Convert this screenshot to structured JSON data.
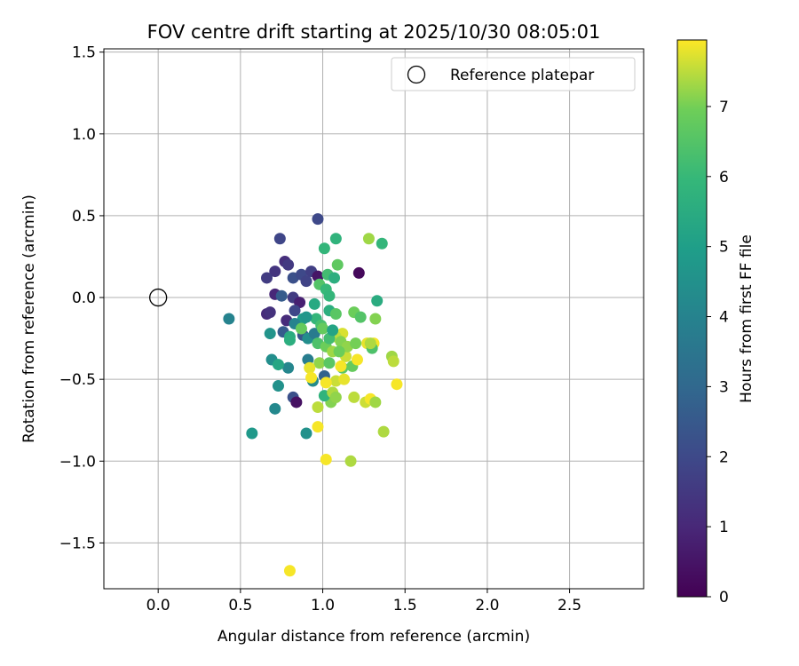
{
  "chart_data": {
    "type": "scatter",
    "title": "FOV centre drift starting at 2025/10/30 08:05:01",
    "xlabel": "Angular distance from reference (arcmin)",
    "ylabel": "Rotation from reference (arcmin)",
    "xlim": [
      -0.33,
      2.95
    ],
    "ylim": [
      -1.78,
      1.52
    ],
    "x_ticks": [
      0.0,
      0.5,
      1.0,
      1.5,
      2.0,
      2.5
    ],
    "x_tick_labels": [
      "0.0",
      "0.5",
      "1.0",
      "1.5",
      "2.0",
      "2.5"
    ],
    "y_ticks": [
      1.5,
      1.0,
      0.5,
      0.0,
      -0.5,
      -1.0,
      -1.5
    ],
    "y_tick_labels": [
      "1.5",
      "1.0",
      "0.5",
      "0.0",
      "−0.5",
      "−1.0",
      "−1.5"
    ],
    "grid": true,
    "legend": {
      "placement": "top-right",
      "entries": [
        "Reference platepar"
      ]
    },
    "reference_point": {
      "x": 0.0,
      "y": 0.0,
      "label": "Reference platepar"
    },
    "colorbar": {
      "label": "Hours from first FF file",
      "range": [
        0,
        7.95
      ],
      "ticks": [
        0,
        1,
        2,
        3,
        4,
        5,
        6,
        7
      ],
      "tick_labels": [
        "0",
        "1",
        "2",
        "3",
        "4",
        "5",
        "6",
        "7"
      ]
    },
    "points": [
      {
        "x": 0.97,
        "y": 0.48,
        "h": 2.0
      },
      {
        "x": 0.74,
        "y": 0.36,
        "h": 1.9
      },
      {
        "x": 0.77,
        "y": 0.22,
        "h": 1.2
      },
      {
        "x": 0.79,
        "y": 0.2,
        "h": 1.5
      },
      {
        "x": 0.71,
        "y": 0.16,
        "h": 1.4
      },
      {
        "x": 0.66,
        "y": 0.12,
        "h": 1.6
      },
      {
        "x": 0.82,
        "y": 0.12,
        "h": 2.2
      },
      {
        "x": 0.87,
        "y": 0.14,
        "h": 2.0
      },
      {
        "x": 0.9,
        "y": 0.1,
        "h": 1.8
      },
      {
        "x": 0.93,
        "y": 0.16,
        "h": 1.7
      },
      {
        "x": 0.97,
        "y": 0.13,
        "h": 0.5
      },
      {
        "x": 0.71,
        "y": 0.02,
        "h": 1.0
      },
      {
        "x": 0.75,
        "y": 0.01,
        "h": 2.6
      },
      {
        "x": 0.82,
        "y": 0.0,
        "h": 1.6
      },
      {
        "x": 0.86,
        "y": -0.03,
        "h": 0.8
      },
      {
        "x": 0.66,
        "y": -0.1,
        "h": 1.1
      },
      {
        "x": 0.68,
        "y": -0.09,
        "h": 1.3
      },
      {
        "x": 0.78,
        "y": -0.14,
        "h": 1.1
      },
      {
        "x": 0.83,
        "y": -0.08,
        "h": 1.9
      },
      {
        "x": 0.76,
        "y": -0.21,
        "h": 2.6
      },
      {
        "x": 0.88,
        "y": -0.23,
        "h": 2.4
      },
      {
        "x": 1.22,
        "y": 0.15,
        "h": 0.2
      },
      {
        "x": 0.43,
        "y": -0.13,
        "h": 4.0
      },
      {
        "x": 0.68,
        "y": -0.22,
        "h": 4.6
      },
      {
        "x": 0.69,
        "y": -0.38,
        "h": 4.4
      },
      {
        "x": 0.73,
        "y": -0.54,
        "h": 4.5
      },
      {
        "x": 0.71,
        "y": -0.68,
        "h": 4.2
      },
      {
        "x": 0.57,
        "y": -0.83,
        "h": 4.8
      },
      {
        "x": 0.9,
        "y": -0.83,
        "h": 4.5
      },
      {
        "x": 0.82,
        "y": -0.61,
        "h": 2.2
      },
      {
        "x": 0.84,
        "y": -0.64,
        "h": 0.4
      },
      {
        "x": 0.91,
        "y": -0.38,
        "h": 3.8
      },
      {
        "x": 0.79,
        "y": -0.43,
        "h": 4.1
      },
      {
        "x": 0.94,
        "y": -0.51,
        "h": 4.3
      },
      {
        "x": 1.01,
        "y": -0.48,
        "h": 2.8
      },
      {
        "x": 0.91,
        "y": -0.25,
        "h": 4.4
      },
      {
        "x": 0.95,
        "y": -0.22,
        "h": 3.7
      },
      {
        "x": 0.88,
        "y": -0.13,
        "h": 4.9
      },
      {
        "x": 0.83,
        "y": -0.16,
        "h": 4.0
      },
      {
        "x": 0.8,
        "y": -0.24,
        "h": 5.5
      },
      {
        "x": 0.8,
        "y": -0.26,
        "h": 5.6
      },
      {
        "x": 0.73,
        "y": -0.41,
        "h": 5.3
      },
      {
        "x": 1.01,
        "y": 0.3,
        "h": 5.9
      },
      {
        "x": 1.08,
        "y": 0.36,
        "h": 5.8
      },
      {
        "x": 1.09,
        "y": 0.2,
        "h": 6.7
      },
      {
        "x": 1.03,
        "y": 0.14,
        "h": 6.2
      },
      {
        "x": 1.07,
        "y": 0.12,
        "h": 5.6
      },
      {
        "x": 0.98,
        "y": 0.08,
        "h": 6.5
      },
      {
        "x": 1.02,
        "y": 0.05,
        "h": 6.0
      },
      {
        "x": 1.04,
        "y": 0.01,
        "h": 5.9
      },
      {
        "x": 0.95,
        "y": -0.04,
        "h": 5.4
      },
      {
        "x": 1.04,
        "y": -0.08,
        "h": 5.6
      },
      {
        "x": 1.08,
        "y": -0.1,
        "h": 6.6
      },
      {
        "x": 0.96,
        "y": -0.13,
        "h": 5.9
      },
      {
        "x": 0.99,
        "y": -0.17,
        "h": 6.3
      },
      {
        "x": 1.0,
        "y": -0.19,
        "h": 6.8
      },
      {
        "x": 0.97,
        "y": -0.28,
        "h": 6.4
      },
      {
        "x": 1.02,
        "y": -0.3,
        "h": 6.9
      },
      {
        "x": 0.98,
        "y": -0.4,
        "h": 7.2
      },
      {
        "x": 1.04,
        "y": -0.4,
        "h": 6.6
      },
      {
        "x": 1.12,
        "y": -0.43,
        "h": 6.6
      },
      {
        "x": 1.18,
        "y": -0.42,
        "h": 6.8
      },
      {
        "x": 1.05,
        "y": -0.64,
        "h": 7.1
      },
      {
        "x": 1.01,
        "y": -0.6,
        "h": 5.8
      },
      {
        "x": 0.97,
        "y": -0.67,
        "h": 7.5
      },
      {
        "x": 1.28,
        "y": 0.36,
        "h": 7.3
      },
      {
        "x": 1.36,
        "y": 0.33,
        "h": 5.9
      },
      {
        "x": 1.33,
        "y": -0.02,
        "h": 5.5
      },
      {
        "x": 1.19,
        "y": -0.09,
        "h": 6.9
      },
      {
        "x": 1.23,
        "y": -0.12,
        "h": 6.5
      },
      {
        "x": 1.32,
        "y": -0.13,
        "h": 7.1
      },
      {
        "x": 1.12,
        "y": -0.22,
        "h": 7.7
      },
      {
        "x": 1.08,
        "y": -0.24,
        "h": 7.5
      },
      {
        "x": 1.11,
        "y": -0.27,
        "h": 7.1
      },
      {
        "x": 1.06,
        "y": -0.33,
        "h": 7.3
      },
      {
        "x": 1.14,
        "y": -0.36,
        "h": 7.6
      },
      {
        "x": 1.11,
        "y": -0.42,
        "h": 7.9
      },
      {
        "x": 1.08,
        "y": -0.51,
        "h": 7.6
      },
      {
        "x": 1.13,
        "y": -0.5,
        "h": 7.8
      },
      {
        "x": 1.02,
        "y": -0.52,
        "h": 7.9
      },
      {
        "x": 1.06,
        "y": -0.58,
        "h": 7.4
      },
      {
        "x": 1.08,
        "y": -0.61,
        "h": 7.2
      },
      {
        "x": 1.21,
        "y": -0.38,
        "h": 7.9
      },
      {
        "x": 1.27,
        "y": -0.28,
        "h": 7.8
      },
      {
        "x": 1.31,
        "y": -0.28,
        "h": 7.9
      },
      {
        "x": 1.3,
        "y": -0.31,
        "h": 6.4
      },
      {
        "x": 1.29,
        "y": -0.28,
        "h": 7.4
      },
      {
        "x": 1.42,
        "y": -0.36,
        "h": 7.3
      },
      {
        "x": 1.43,
        "y": -0.39,
        "h": 7.5
      },
      {
        "x": 1.45,
        "y": -0.53,
        "h": 7.9
      },
      {
        "x": 1.19,
        "y": -0.61,
        "h": 7.5
      },
      {
        "x": 1.26,
        "y": -0.64,
        "h": 7.6
      },
      {
        "x": 1.29,
        "y": -0.62,
        "h": 7.9
      },
      {
        "x": 1.32,
        "y": -0.64,
        "h": 7.3
      },
      {
        "x": 1.37,
        "y": -0.82,
        "h": 7.4
      },
      {
        "x": 1.02,
        "y": -0.99,
        "h": 7.9
      },
      {
        "x": 1.17,
        "y": -1.0,
        "h": 7.4
      },
      {
        "x": 0.97,
        "y": -0.79,
        "h": 7.9
      },
      {
        "x": 0.8,
        "y": -1.67,
        "h": 7.9
      },
      {
        "x": 0.92,
        "y": -0.43,
        "h": 7.8
      },
      {
        "x": 0.93,
        "y": -0.49,
        "h": 7.9
      },
      {
        "x": 1.04,
        "y": -0.25,
        "h": 6.2
      },
      {
        "x": 1.06,
        "y": -0.2,
        "h": 5.2
      },
      {
        "x": 0.87,
        "y": -0.19,
        "h": 6.8
      },
      {
        "x": 0.9,
        "y": -0.12,
        "h": 4.7
      },
      {
        "x": 1.15,
        "y": -0.3,
        "h": 7.2
      },
      {
        "x": 1.1,
        "y": -0.33,
        "h": 6.9
      },
      {
        "x": 1.2,
        "y": -0.28,
        "h": 7.0
      }
    ]
  }
}
